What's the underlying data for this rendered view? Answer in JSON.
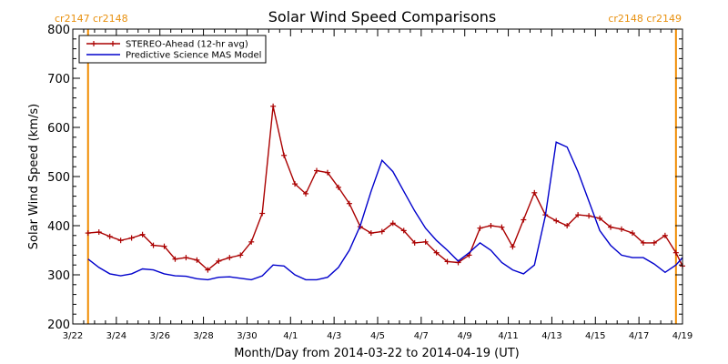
{
  "chart_data": {
    "type": "line",
    "title": "Solar Wind Speed Comparisons",
    "xlabel": "Month/Day from 2014-03-22 to 2014-04-19 (UT)",
    "ylabel": "Solar Wind Speed (km/s)",
    "xlim": [
      0,
      28
    ],
    "ylim": [
      200,
      800
    ],
    "yticks": [
      200,
      300,
      400,
      500,
      600,
      700,
      800
    ],
    "xtick_values": [
      0,
      2,
      4,
      6,
      8,
      10,
      12,
      14,
      16,
      18,
      20,
      22,
      24,
      26,
      28
    ],
    "xtick_labels": [
      "3/22",
      "3/24",
      "3/26",
      "3/28",
      "3/30",
      "4/1",
      "4/3",
      "4/5",
      "4/7",
      "4/9",
      "4/11",
      "4/13",
      "4/15",
      "4/17",
      "4/19"
    ],
    "rotation_markers": [
      {
        "x": 0.7,
        "label": "cr2147 cr2148",
        "color": "#f08c00"
      },
      {
        "x": 27.7,
        "label": "cr2148 cr2149",
        "color": "#f08c00"
      }
    ],
    "legend_position": "top-left",
    "series": [
      {
        "name": "STEREO-Ahead (12-hr avg)",
        "color": "#aa0000",
        "markers": "plus",
        "x": [
          0.7,
          1.2,
          1.7,
          2.2,
          2.7,
          3.2,
          3.7,
          4.2,
          4.7,
          5.2,
          5.7,
          6.2,
          6.7,
          7.2,
          7.7,
          8.2,
          8.7,
          9.2,
          9.7,
          10.2,
          10.7,
          11.2,
          11.7,
          12.2,
          12.7,
          13.2,
          13.7,
          14.2,
          14.7,
          15.2,
          15.7,
          16.2,
          16.7,
          17.2,
          17.7,
          18.2,
          18.7,
          19.2,
          19.7,
          20.2,
          20.7,
          21.2,
          21.7,
          22.2,
          22.7,
          23.2,
          23.7,
          24.2,
          24.7,
          25.2,
          25.7,
          26.2,
          26.7,
          27.2,
          27.7,
          28.0
        ],
        "values": [
          385,
          387,
          378,
          370,
          375,
          382,
          360,
          358,
          332,
          335,
          330,
          310,
          328,
          335,
          340,
          367,
          425,
          643,
          543,
          485,
          465,
          512,
          508,
          478,
          445,
          398,
          385,
          388,
          405,
          390,
          365,
          367,
          345,
          327,
          325,
          340,
          395,
          400,
          397,
          357,
          412,
          467,
          422,
          410,
          400,
          422,
          420,
          415,
          397,
          393,
          385,
          365,
          365,
          380,
          345,
          318
        ]
      },
      {
        "name": "Predictive Science MAS Model",
        "color": "#0000cc",
        "markers": "none",
        "x": [
          0.7,
          1.2,
          1.7,
          2.2,
          2.7,
          3.2,
          3.7,
          4.2,
          4.7,
          5.2,
          5.7,
          6.2,
          6.7,
          7.2,
          7.7,
          8.2,
          8.7,
          9.2,
          9.7,
          10.2,
          10.7,
          11.2,
          11.7,
          12.2,
          12.7,
          13.2,
          13.7,
          14.2,
          14.7,
          15.2,
          15.7,
          16.2,
          16.7,
          17.2,
          17.7,
          18.2,
          18.7,
          19.2,
          19.7,
          20.2,
          20.7,
          21.2,
          21.7,
          22.2,
          22.7,
          23.2,
          23.7,
          24.2,
          24.7,
          25.2,
          25.7,
          26.2,
          26.7,
          27.2,
          27.7,
          28.0
        ],
        "values": [
          332,
          315,
          302,
          298,
          302,
          312,
          310,
          302,
          298,
          297,
          292,
          290,
          295,
          296,
          293,
          290,
          298,
          320,
          318,
          300,
          290,
          290,
          295,
          315,
          350,
          400,
          470,
          533,
          510,
          470,
          430,
          395,
          370,
          350,
          328,
          345,
          365,
          350,
          325,
          310,
          302,
          320,
          420,
          570,
          560,
          510,
          450,
          390,
          360,
          340,
          335,
          335,
          322,
          305,
          320,
          335
        ]
      }
    ]
  }
}
